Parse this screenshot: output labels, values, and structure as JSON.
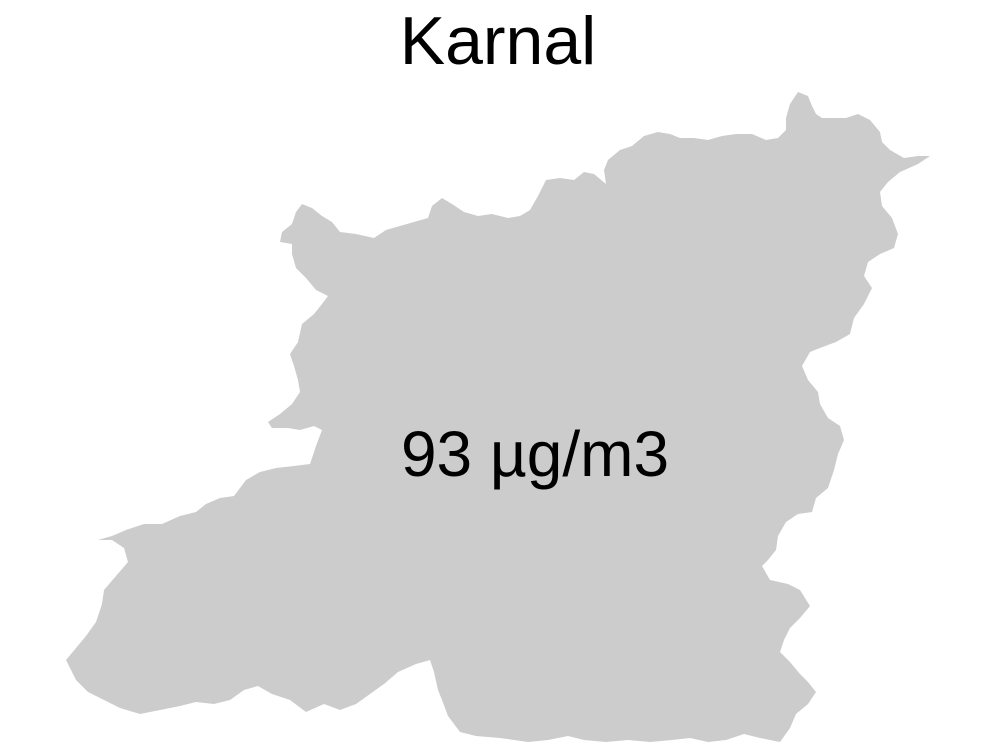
{
  "map": {
    "title": "Karnal",
    "region_value": "93 µg/m3",
    "region_fill": "#cccccc",
    "background": "#ffffff"
  }
}
